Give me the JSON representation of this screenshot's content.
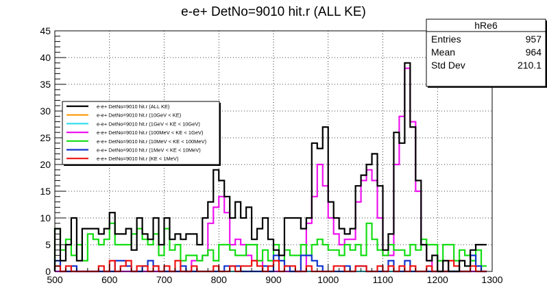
{
  "chart_data": {
    "type": "histogram-step",
    "title": "e-e+ DetNo=9010 hit.r (ALL KE)",
    "xlabel": "",
    "ylabel": "",
    "xlim": [
      500,
      1300
    ],
    "ylim": [
      0,
      45
    ],
    "bin_width": 10,
    "x_start": 500,
    "xticks": [
      500,
      600,
      700,
      800,
      900,
      1000,
      1100,
      1200,
      1300
    ],
    "yticks": [
      0,
      5,
      10,
      15,
      20,
      25,
      30,
      35,
      40,
      45
    ],
    "grid": true,
    "stats": {
      "name": "hRe6",
      "rows": [
        {
          "label": "Entries",
          "value": "957"
        },
        {
          "label": "Mean",
          "value": "964"
        },
        {
          "label": "Std Dev",
          "value": "210.1"
        }
      ]
    },
    "legend_position": "left-middle",
    "series": [
      {
        "name": "e-e+ DetNo=9010 hit.r (ALL KE)",
        "color": "#000000",
        "values": [
          8,
          2,
          5,
          10,
          2,
          8,
          8,
          8,
          7,
          8,
          11,
          7,
          7,
          8,
          4,
          10,
          7,
          6,
          10,
          5,
          10,
          6,
          7,
          6,
          7,
          7,
          5,
          10,
          13,
          19,
          17,
          14,
          10,
          13,
          10,
          12,
          6,
          8,
          10,
          6,
          4,
          3,
          10,
          10,
          10,
          8,
          10,
          24,
          23,
          27,
          13,
          10,
          8,
          7,
          8,
          16,
          18,
          20,
          22,
          16,
          4,
          7,
          26,
          24,
          39,
          27,
          17,
          5,
          2,
          3,
          0,
          2,
          0,
          0,
          2,
          1,
          4,
          5,
          5
        ],
        "show_edges": true
      },
      {
        "name": "e-e+ DetNo=9010 hit.r (10GeV < KE)",
        "color": "#ff9900",
        "values": [],
        "show_edges": false
      },
      {
        "name": "e-e+ DetNo=9010 hit.r (1GeV < KE < 10GeV)",
        "color": "#33ddee",
        "values": [
          0,
          0,
          0,
          0,
          0,
          0,
          0,
          0,
          0,
          0,
          0,
          0,
          0,
          0,
          0,
          0,
          0,
          0,
          0,
          0,
          0,
          0,
          0,
          0,
          0,
          0,
          0,
          0,
          0,
          0,
          0,
          0,
          0,
          0,
          0,
          0,
          0,
          0,
          0,
          0,
          0,
          0,
          0,
          0,
          0,
          0,
          0,
          0,
          0,
          0,
          0,
          0,
          0,
          0,
          0,
          0,
          0,
          0,
          0,
          0,
          0,
          0,
          0,
          0,
          0,
          0,
          0,
          0,
          0,
          0,
          0,
          0,
          0,
          0,
          0,
          0,
          0,
          0,
          0
        ],
        "show_edges": false
      },
      {
        "name": "e-e+ DetNo=9010 hit.r (100MeV < KE < 1GeV)",
        "color": "#ee11ee",
        "values": [
          0,
          0,
          0,
          0,
          0,
          0,
          0,
          0,
          0,
          0,
          0,
          0,
          0,
          0,
          0,
          0,
          0,
          0,
          0,
          0,
          0,
          0,
          0,
          0,
          0,
          2,
          2,
          3,
          9,
          12,
          14,
          11,
          5,
          6,
          5,
          3,
          2,
          2,
          0,
          0,
          0,
          0,
          0,
          0,
          0,
          0,
          9,
          14,
          20,
          16,
          10,
          7,
          5,
          6,
          6,
          13,
          17,
          19,
          17,
          10,
          3,
          3,
          20,
          29,
          38,
          28,
          15,
          5,
          2,
          0,
          0,
          0,
          0,
          0,
          0,
          0,
          0,
          0,
          0
        ],
        "show_edges": false
      },
      {
        "name": "e-e+ DetNo=9010 hit.r (10MeV < KE < 100MeV)",
        "color": "#11dd11",
        "values": [
          8,
          4,
          6,
          3,
          5,
          2,
          7,
          6,
          5,
          6,
          9,
          5,
          5,
          5,
          7,
          8,
          6,
          5,
          7,
          3,
          8,
          4,
          5,
          2,
          3,
          3,
          2,
          3,
          4,
          2,
          5,
          5,
          4,
          3,
          3,
          5,
          5,
          2,
          4,
          2,
          5,
          2,
          4,
          3,
          3,
          5,
          3,
          5,
          6,
          5,
          4,
          4,
          3,
          5,
          4,
          5,
          3,
          9,
          6,
          4,
          3,
          5,
          4,
          4,
          3,
          5,
          4,
          6,
          5,
          5,
          2,
          5,
          5,
          2,
          4,
          3,
          2,
          4,
          1
        ],
        "show_edges": true
      },
      {
        "name": "e-e+ DetNo=9010 hit.r (1MeV < KE < 10MeV)",
        "color": "#1133cc",
        "values": [
          2,
          0,
          0,
          1,
          0,
          0,
          0,
          0,
          0,
          0,
          0,
          2,
          2,
          1,
          0,
          0,
          1,
          2,
          1,
          0,
          0,
          0,
          0,
          1,
          0,
          0,
          0,
          0,
          0,
          0,
          0,
          1,
          1,
          1,
          0,
          0,
          0,
          0,
          1,
          0,
          3,
          2,
          1,
          0,
          0,
          3,
          3,
          2,
          1,
          0,
          0,
          0,
          0,
          1,
          0,
          1,
          1,
          0,
          0,
          0,
          0,
          2,
          0,
          0,
          2,
          0,
          0,
          0,
          0,
          0,
          0,
          0,
          0,
          0,
          0,
          0,
          3,
          1,
          0
        ],
        "show_edges": true
      },
      {
        "name": "e-e+ DetNo=9010 hit.r (KE < 1MeV)",
        "color": "#ee1111",
        "values": [
          1,
          0,
          1,
          0,
          0,
          0,
          0,
          0,
          1,
          0,
          2,
          0,
          1,
          2,
          0,
          1,
          1,
          0,
          1,
          0,
          1,
          0,
          2,
          0,
          0,
          1,
          0,
          0,
          0,
          1,
          0,
          0,
          1,
          0,
          1,
          1,
          2,
          1,
          0,
          1,
          2,
          0,
          1,
          1,
          0,
          0,
          1,
          0,
          0,
          0,
          0,
          1,
          1,
          0,
          0,
          1,
          1,
          0,
          0,
          1,
          0,
          1,
          0,
          1,
          0,
          1,
          0,
          0,
          1,
          0,
          0,
          0,
          2,
          1,
          0,
          0,
          1,
          0,
          0
        ],
        "show_edges": true
      }
    ]
  }
}
